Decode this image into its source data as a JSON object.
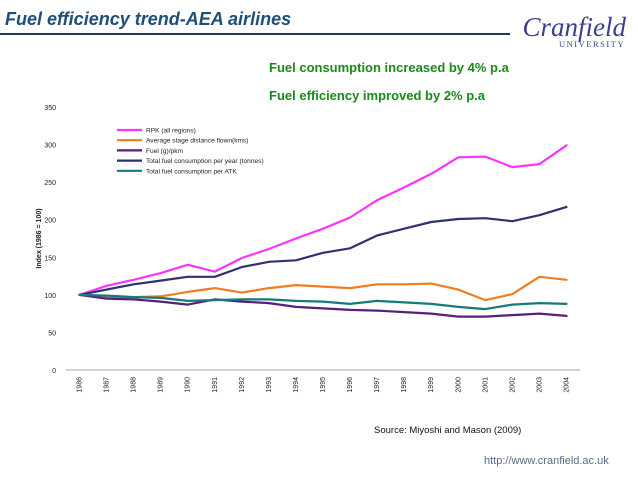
{
  "slide": {
    "title": "Fuel efficiency trend-AEA airlines",
    "logo_name": "Cranfield",
    "logo_sub": "UNIVERSITY",
    "note1": "Fuel consumption increased by 4% p.a",
    "note2": "Fuel efficiency improved by 2% p.a",
    "source": "Source: Miyoshi and Mason (2009)",
    "url": "http://www.cranfield.ac.uk"
  },
  "colors": {
    "title": "#1f4e79",
    "note": "#1a8a1a",
    "series": [
      "#ff33ff",
      "#f07d20",
      "#5a1e7a",
      "#2f3170",
      "#157a7a"
    ]
  },
  "chart_data": {
    "type": "line",
    "title": "",
    "xlabel": "",
    "ylabel": "Index (1986 = 100)",
    "ylim": [
      0,
      350
    ],
    "yticks": [
      0,
      50,
      100,
      150,
      200,
      250,
      300,
      350
    ],
    "grid": false,
    "legend_position": "top-left",
    "x": [
      "1986",
      "1987",
      "1988",
      "1989",
      "1990",
      "1991",
      "1992",
      "1993",
      "1994",
      "1995",
      "1996",
      "1997",
      "1998",
      "1999",
      "2000",
      "2001",
      "2002",
      "2003",
      "2004"
    ],
    "series": [
      {
        "name": "RPK (all regions)",
        "values": [
          100,
          112,
          120,
          129,
          140,
          131,
          149,
          161,
          175,
          188,
          203,
          226,
          243,
          261,
          283,
          284,
          270,
          274,
          299
        ]
      },
      {
        "name": "Average stage distance flown(kms)",
        "values": [
          100,
          97,
          97,
          98,
          104,
          109,
          103,
          109,
          113,
          111,
          109,
          114,
          114,
          115,
          107,
          93,
          101,
          124,
          120
        ]
      },
      {
        "name": "Fuel (g)/pkm",
        "values": [
          100,
          95,
          94,
          91,
          87,
          94,
          91,
          89,
          84,
          82,
          80,
          79,
          77,
          75,
          71,
          71,
          73,
          75,
          72
        ]
      },
      {
        "name": "Total fuel consumption per year (tonnes)",
        "values": [
          100,
          107,
          114,
          119,
          124,
          124,
          137,
          144,
          146,
          156,
          162,
          179,
          188,
          197,
          201,
          202,
          198,
          206,
          217
        ]
      },
      {
        "name": "Total fuel consumption per ATK",
        "values": [
          100,
          99,
          97,
          96,
          92,
          93,
          94,
          94,
          92,
          91,
          88,
          92,
          90,
          88,
          84,
          81,
          87,
          89,
          88
        ]
      }
    ]
  }
}
